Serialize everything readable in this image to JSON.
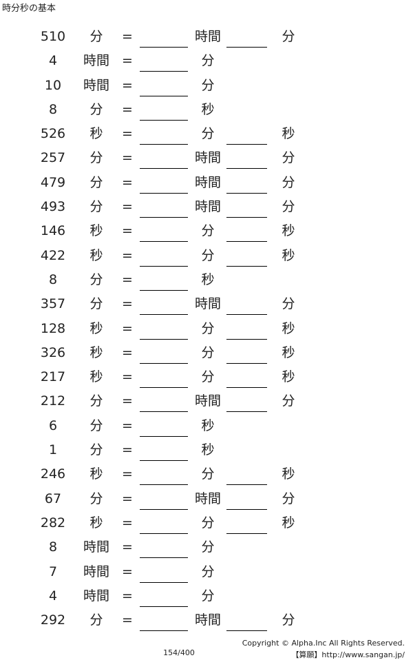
{
  "title": "時分秒の基本",
  "rows": [
    {
      "num": "510",
      "u1": "分",
      "eq": "=",
      "u2": "時間",
      "u3": "分",
      "b2": true
    },
    {
      "num": "4",
      "u1": "時間",
      "eq": "=",
      "u2": "分",
      "u3": "",
      "b2": false
    },
    {
      "num": "10",
      "u1": "時間",
      "eq": "=",
      "u2": "分",
      "u3": "",
      "b2": false
    },
    {
      "num": "8",
      "u1": "分",
      "eq": "=",
      "u2": "秒",
      "u3": "",
      "b2": false
    },
    {
      "num": "526",
      "u1": "秒",
      "eq": "=",
      "u2": "分",
      "u3": "秒",
      "b2": true
    },
    {
      "num": "257",
      "u1": "分",
      "eq": "=",
      "u2": "時間",
      "u3": "分",
      "b2": true
    },
    {
      "num": "479",
      "u1": "分",
      "eq": "=",
      "u2": "時間",
      "u3": "分",
      "b2": true
    },
    {
      "num": "493",
      "u1": "分",
      "eq": "=",
      "u2": "時間",
      "u3": "分",
      "b2": true
    },
    {
      "num": "146",
      "u1": "秒",
      "eq": "=",
      "u2": "分",
      "u3": "秒",
      "b2": true
    },
    {
      "num": "422",
      "u1": "秒",
      "eq": "=",
      "u2": "分",
      "u3": "秒",
      "b2": true
    },
    {
      "num": "8",
      "u1": "分",
      "eq": "=",
      "u2": "秒",
      "u3": "",
      "b2": false
    },
    {
      "num": "357",
      "u1": "分",
      "eq": "=",
      "u2": "時間",
      "u3": "分",
      "b2": true
    },
    {
      "num": "128",
      "u1": "秒",
      "eq": "=",
      "u2": "分",
      "u3": "秒",
      "b2": true
    },
    {
      "num": "326",
      "u1": "秒",
      "eq": "=",
      "u2": "分",
      "u3": "秒",
      "b2": true
    },
    {
      "num": "217",
      "u1": "秒",
      "eq": "=",
      "u2": "分",
      "u3": "秒",
      "b2": true
    },
    {
      "num": "212",
      "u1": "分",
      "eq": "=",
      "u2": "時間",
      "u3": "分",
      "b2": true
    },
    {
      "num": "6",
      "u1": "分",
      "eq": "=",
      "u2": "秒",
      "u3": "",
      "b2": false
    },
    {
      "num": "1",
      "u1": "分",
      "eq": "=",
      "u2": "秒",
      "u3": "",
      "b2": false
    },
    {
      "num": "246",
      "u1": "秒",
      "eq": "=",
      "u2": "分",
      "u3": "秒",
      "b2": true
    },
    {
      "num": "67",
      "u1": "分",
      "eq": "=",
      "u2": "時間",
      "u3": "分",
      "b2": true
    },
    {
      "num": "282",
      "u1": "秒",
      "eq": "=",
      "u2": "分",
      "u3": "秒",
      "b2": true
    },
    {
      "num": "8",
      "u1": "時間",
      "eq": "=",
      "u2": "分",
      "u3": "",
      "b2": false
    },
    {
      "num": "7",
      "u1": "時間",
      "eq": "=",
      "u2": "分",
      "u3": "",
      "b2": false
    },
    {
      "num": "4",
      "u1": "時間",
      "eq": "=",
      "u2": "分",
      "u3": "",
      "b2": false
    },
    {
      "num": "292",
      "u1": "分",
      "eq": "=",
      "u2": "時間",
      "u3": "分",
      "b2": true
    }
  ],
  "footer": {
    "page": "154/400",
    "copyright": "Copyright © Alpha.Inc All Rights Reserved.",
    "site": "【算願】http://www.sangan.jp/"
  }
}
